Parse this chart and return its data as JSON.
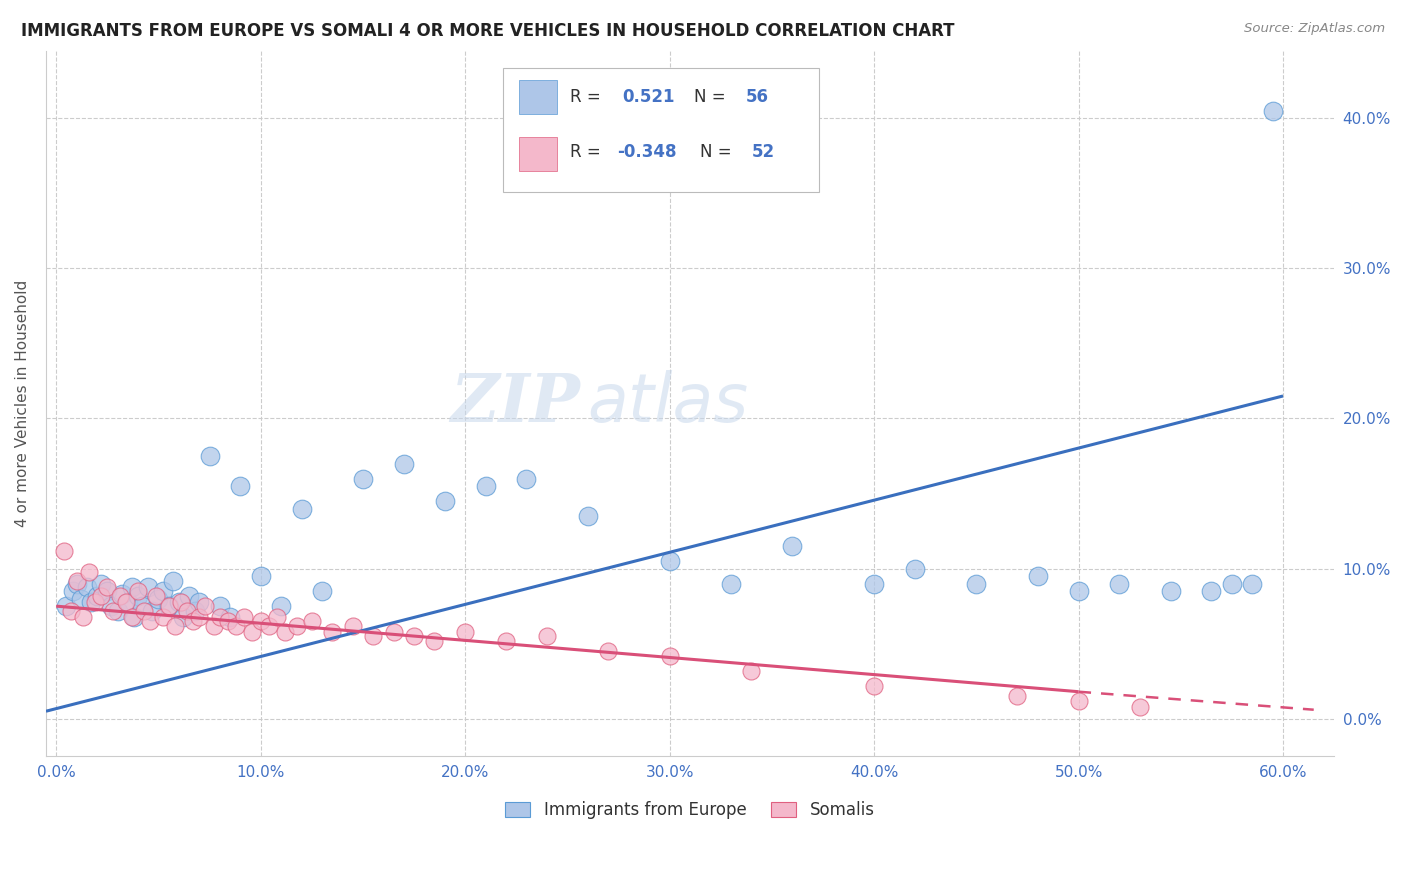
{
  "title": "IMMIGRANTS FROM EUROPE VS SOMALI 4 OR MORE VEHICLES IN HOUSEHOLD CORRELATION CHART",
  "source": "Source: ZipAtlas.com",
  "ylabel_label": "4 or more Vehicles in Household",
  "x_ticks": [
    "0.0%",
    "10.0%",
    "20.0%",
    "30.0%",
    "40.0%",
    "50.0%",
    "60.0%"
  ],
  "x_tick_vals": [
    0.0,
    0.1,
    0.2,
    0.3,
    0.4,
    0.5,
    0.6
  ],
  "y_ticks_right": [
    "0.0%",
    "10.0%",
    "20.0%",
    "30.0%",
    "40.0%"
  ],
  "xlim": [
    -0.005,
    0.625
  ],
  "ylim": [
    -0.025,
    0.445
  ],
  "background_color": "#ffffff",
  "grid_color": "#cccccc",
  "blue_fill": "#aec6e8",
  "blue_edge": "#5b9bd5",
  "pink_fill": "#f4b8cb",
  "pink_edge": "#e06080",
  "blue_line_color": "#3a6fbe",
  "pink_line_color": "#d94f78",
  "title_color": "#222222",
  "source_color": "#888888",
  "legend_label1": "Immigrants from Europe",
  "legend_label2": "Somalis",
  "blue_scatter_x": [
    0.005,
    0.008,
    0.01,
    0.012,
    0.015,
    0.017,
    0.02,
    0.022,
    0.025,
    0.027,
    0.03,
    0.032,
    0.035,
    0.037,
    0.038,
    0.04,
    0.042,
    0.045,
    0.047,
    0.05,
    0.052,
    0.055,
    0.057,
    0.06,
    0.062,
    0.065,
    0.068,
    0.07,
    0.075,
    0.08,
    0.085,
    0.09,
    0.1,
    0.11,
    0.12,
    0.13,
    0.15,
    0.17,
    0.19,
    0.21,
    0.23,
    0.26,
    0.3,
    0.33,
    0.36,
    0.4,
    0.42,
    0.45,
    0.48,
    0.5,
    0.52,
    0.545,
    0.565,
    0.575,
    0.585,
    0.595
  ],
  "blue_scatter_y": [
    0.075,
    0.085,
    0.09,
    0.08,
    0.088,
    0.078,
    0.082,
    0.09,
    0.085,
    0.075,
    0.072,
    0.083,
    0.078,
    0.088,
    0.068,
    0.082,
    0.075,
    0.088,
    0.072,
    0.08,
    0.085,
    0.075,
    0.092,
    0.078,
    0.068,
    0.082,
    0.072,
    0.078,
    0.175,
    0.075,
    0.068,
    0.155,
    0.095,
    0.075,
    0.14,
    0.085,
    0.16,
    0.17,
    0.145,
    0.155,
    0.16,
    0.135,
    0.105,
    0.09,
    0.115,
    0.09,
    0.1,
    0.09,
    0.095,
    0.085,
    0.09,
    0.085,
    0.085,
    0.09,
    0.09,
    0.405
  ],
  "pink_scatter_x": [
    0.004,
    0.007,
    0.01,
    0.013,
    0.016,
    0.019,
    0.022,
    0.025,
    0.028,
    0.031,
    0.034,
    0.037,
    0.04,
    0.043,
    0.046,
    0.049,
    0.052,
    0.055,
    0.058,
    0.061,
    0.064,
    0.067,
    0.07,
    0.073,
    0.077,
    0.08,
    0.084,
    0.088,
    0.092,
    0.096,
    0.1,
    0.104,
    0.108,
    0.112,
    0.118,
    0.125,
    0.135,
    0.145,
    0.155,
    0.165,
    0.175,
    0.185,
    0.2,
    0.22,
    0.24,
    0.27,
    0.3,
    0.34,
    0.4,
    0.47,
    0.5,
    0.53
  ],
  "pink_scatter_y": [
    0.112,
    0.072,
    0.092,
    0.068,
    0.098,
    0.078,
    0.082,
    0.088,
    0.072,
    0.082,
    0.078,
    0.068,
    0.085,
    0.072,
    0.065,
    0.082,
    0.068,
    0.075,
    0.062,
    0.078,
    0.072,
    0.065,
    0.068,
    0.075,
    0.062,
    0.068,
    0.065,
    0.062,
    0.068,
    0.058,
    0.065,
    0.062,
    0.068,
    0.058,
    0.062,
    0.065,
    0.058,
    0.062,
    0.055,
    0.058,
    0.055,
    0.052,
    0.058,
    0.052,
    0.055,
    0.045,
    0.042,
    0.032,
    0.022,
    0.015,
    0.012,
    0.008
  ],
  "blue_line": [
    [
      -0.005,
      0.005
    ],
    [
      0.6,
      0.215
    ]
  ],
  "pink_line_solid": [
    [
      0.0,
      0.075
    ],
    [
      0.5,
      0.018
    ]
  ],
  "pink_line_dash": [
    [
      0.5,
      0.018
    ],
    [
      0.615,
      0.006
    ]
  ]
}
